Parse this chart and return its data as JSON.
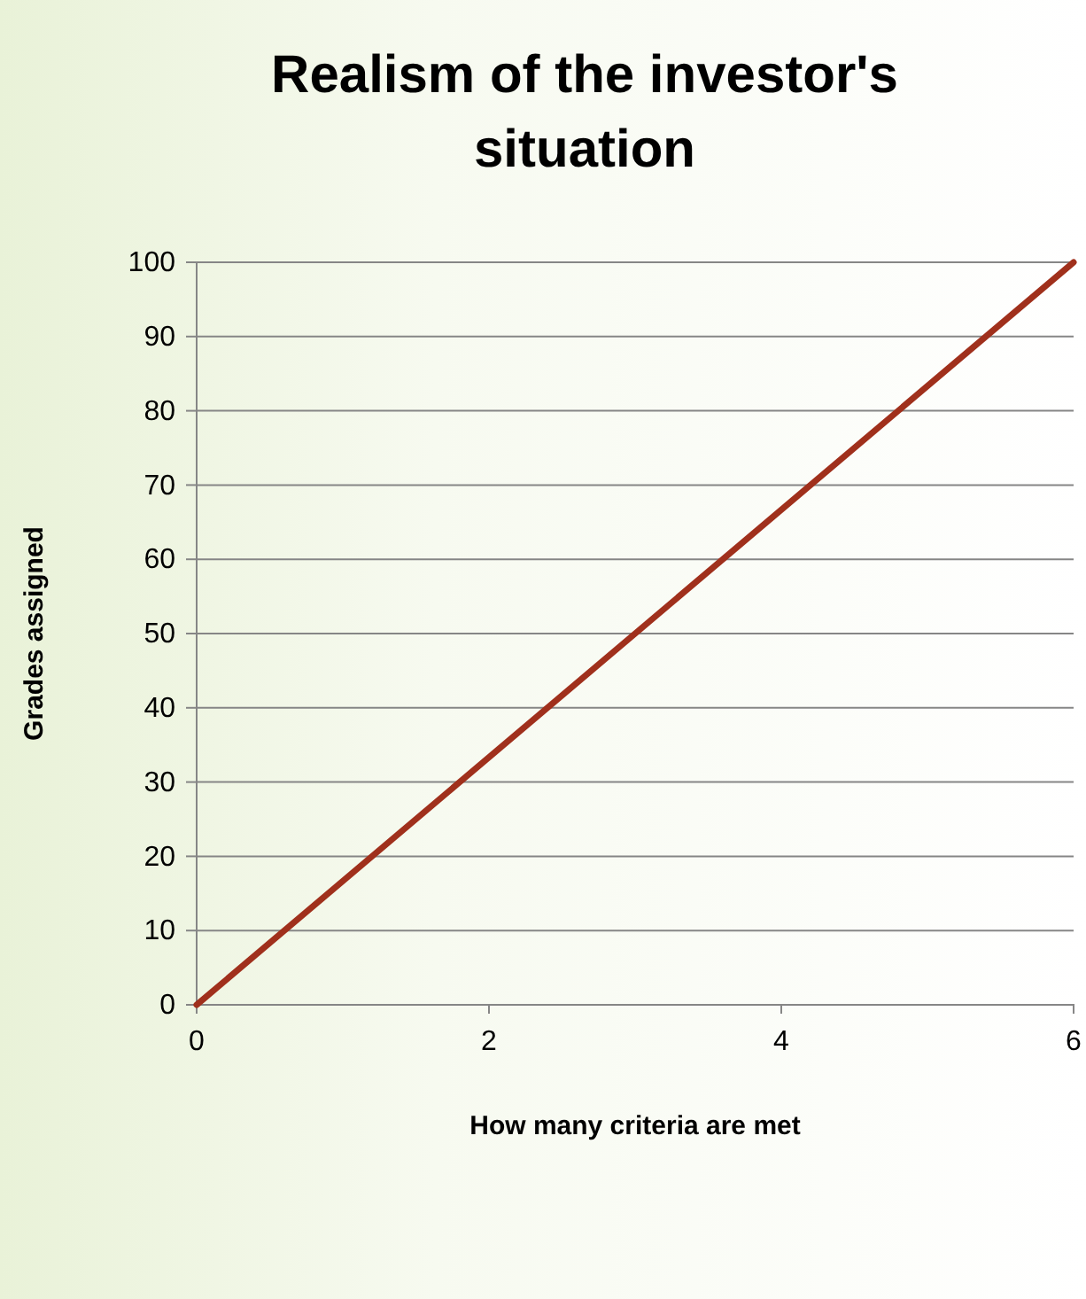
{
  "chart_data": {
    "type": "line",
    "title": "Realism of the investor's situation",
    "xlabel": "How many criteria are met",
    "ylabel": "Grades assigned",
    "x": [
      0,
      6
    ],
    "series": [
      {
        "color": "#a0301c",
        "values": [
          0,
          100
        ]
      }
    ],
    "xlim": [
      0,
      6
    ],
    "xticks": [
      0,
      2,
      4,
      6
    ],
    "ylim": [
      0,
      100
    ],
    "yticks": [
      0,
      10,
      20,
      30,
      40,
      50,
      60,
      70,
      80,
      90,
      100
    ],
    "grid": "y",
    "marker": "none",
    "line_style": "solid"
  }
}
